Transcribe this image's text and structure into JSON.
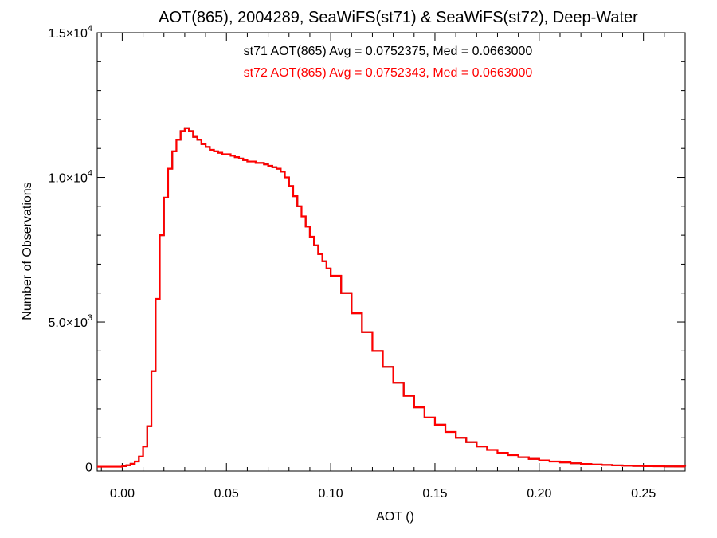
{
  "chart_data": {
    "type": "histogram-step",
    "title": "AOT(865), 2004289, SeaWiFS(st71) & SeaWiFS(st72), Deep-Water",
    "xlabel": "AOT ()",
    "ylabel": "Number of Observations",
    "xlim": [
      -0.012,
      0.27
    ],
    "ylim": [
      -150,
      15000
    ],
    "x_ticks": [
      {
        "value": 0.0,
        "label": "0.00"
      },
      {
        "value": 0.05,
        "label": "0.05"
      },
      {
        "value": 0.1,
        "label": "0.10"
      },
      {
        "value": 0.15,
        "label": "0.15"
      },
      {
        "value": 0.2,
        "label": "0.20"
      },
      {
        "value": 0.25,
        "label": "0.25"
      }
    ],
    "y_ticks": [
      {
        "value": 0,
        "mantissa": "0",
        "exponent": ""
      },
      {
        "value": 5000,
        "mantissa": "5.0×10",
        "exponent": "3"
      },
      {
        "value": 10000,
        "mantissa": "1.0×10",
        "exponent": "4"
      },
      {
        "value": 15000,
        "mantissa": "1.5×10",
        "exponent": "4"
      }
    ],
    "annotations": [
      {
        "text": "st71 AOT(865) Avg = 0.0752375, Med = 0.0663000",
        "color": "#000000"
      },
      {
        "text": "st72 AOT(865) Avg = 0.0752343, Med = 0.0663000",
        "color": "#ff0000"
      }
    ],
    "series": [
      {
        "name": "st71",
        "color": "#000000"
      },
      {
        "name": "st72",
        "color": "#ff0000"
      }
    ],
    "x": [
      -0.012,
      0.0,
      0.002,
      0.004,
      0.006,
      0.008,
      0.01,
      0.012,
      0.014,
      0.016,
      0.018,
      0.02,
      0.022,
      0.024,
      0.026,
      0.028,
      0.03,
      0.032,
      0.034,
      0.036,
      0.038,
      0.04,
      0.042,
      0.044,
      0.046,
      0.048,
      0.05,
      0.052,
      0.054,
      0.056,
      0.058,
      0.06,
      0.062,
      0.064,
      0.066,
      0.068,
      0.07,
      0.072,
      0.074,
      0.076,
      0.078,
      0.08,
      0.082,
      0.084,
      0.086,
      0.088,
      0.09,
      0.092,
      0.094,
      0.096,
      0.098,
      0.1,
      0.105,
      0.11,
      0.115,
      0.12,
      0.125,
      0.13,
      0.135,
      0.14,
      0.145,
      0.15,
      0.155,
      0.16,
      0.165,
      0.17,
      0.175,
      0.18,
      0.185,
      0.19,
      0.195,
      0.2,
      0.205,
      0.21,
      0.215,
      0.22,
      0.225,
      0.23,
      0.235,
      0.24,
      0.245,
      0.25,
      0.255,
      0.26,
      0.265,
      0.27
    ],
    "y": [
      0,
      20,
      50,
      100,
      180,
      350,
      700,
      1400,
      3300,
      5800,
      8000,
      9300,
      10300,
      10900,
      11300,
      11600,
      11700,
      11600,
      11400,
      11300,
      11150,
      11050,
      10950,
      10900,
      10850,
      10800,
      10800,
      10750,
      10700,
      10650,
      10600,
      10550,
      10550,
      10500,
      10500,
      10450,
      10400,
      10350,
      10300,
      10200,
      10000,
      9700,
      9350,
      9000,
      8650,
      8300,
      7950,
      7650,
      7350,
      7100,
      6850,
      6600,
      6000,
      5300,
      4650,
      4000,
      3450,
      2900,
      2450,
      2050,
      1700,
      1450,
      1200,
      1000,
      850,
      700,
      580,
      480,
      400,
      330,
      270,
      220,
      180,
      150,
      120,
      95,
      75,
      60,
      45,
      35,
      25,
      18,
      14,
      10,
      8,
      6
    ]
  }
}
